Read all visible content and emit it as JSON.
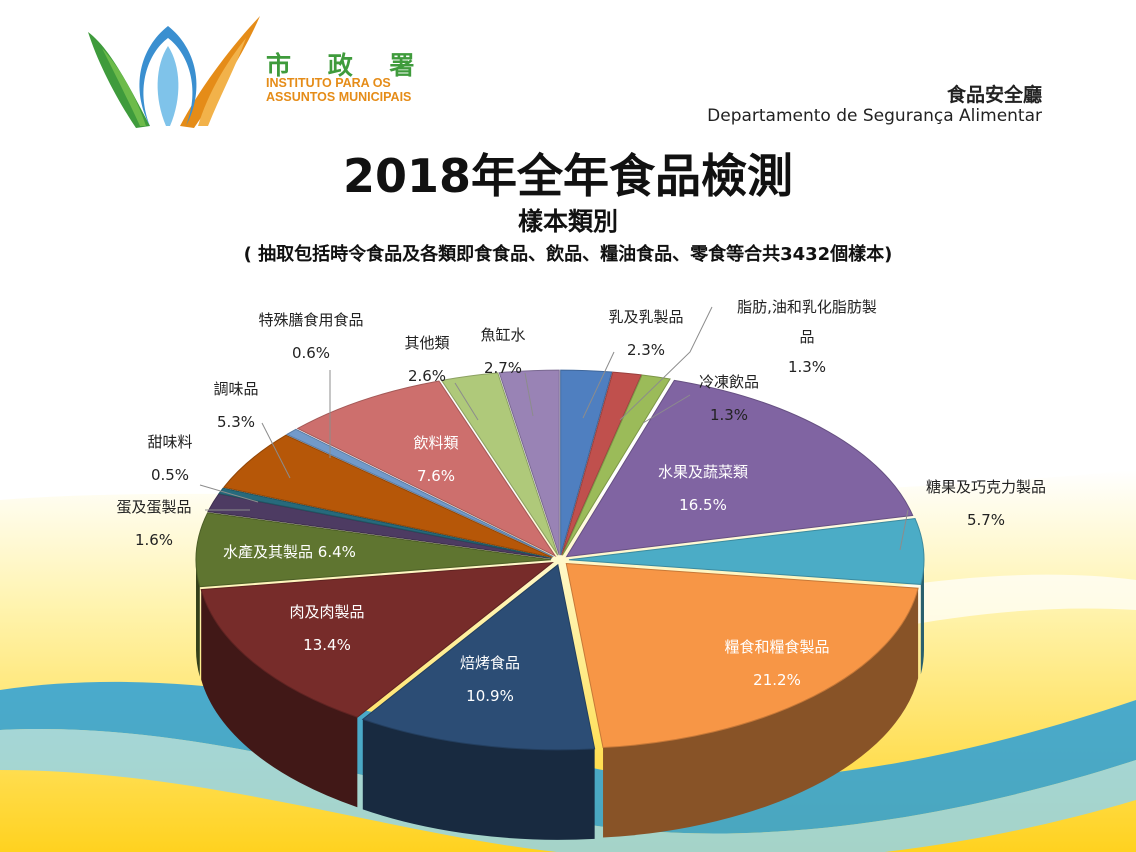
{
  "header": {
    "logo_chinese": "市 政 署",
    "logo_portuguese_line1": "INSTITUTO PARA OS",
    "logo_portuguese_line2": "ASSUNTOS MUNICIPAIS",
    "department_chinese": "食品安全廳",
    "department_portuguese": "Departamento de Segurança Alimentar"
  },
  "colors": {
    "logo_green": "#3f9b3c",
    "logo_orange": "#e58c18",
    "logo_blue": "#3a8fd0",
    "background_yellow": "#ffd62a",
    "background_blue": "#1a9ad8"
  },
  "chart_data": {
    "type": "pie",
    "title": "2018年全年食品檢測",
    "subtitle": "樣本類別",
    "note": "( 抽取包括時令食品及各類即食食品、飲品、糧油食品、零食等合共3432個樣本)",
    "slices": [
      {
        "label": "乳及乳製品",
        "value_text": "2.3%",
        "value": 2.3,
        "color": "#4f7fc0"
      },
      {
        "label": "脂肪,油和乳化脂肪製品",
        "value_text": "1.3%",
        "value": 1.3,
        "color": "#c0504d"
      },
      {
        "label": "冷凍飲品",
        "value_text": "1.3%",
        "value": 1.3,
        "color": "#9bbb59"
      },
      {
        "label": "水果及蔬菜類",
        "value_text": "16.5%",
        "value": 16.5,
        "color": "#8064a2"
      },
      {
        "label": "糖果及巧克力製品",
        "value_text": "5.7%",
        "value": 5.7,
        "color": "#4bacc6"
      },
      {
        "label": "糧食和糧食製品",
        "value_text": "21.2%",
        "value": 21.2,
        "color": "#f79646"
      },
      {
        "label": "焙烤食品",
        "value_text": "10.9%",
        "value": 10.9,
        "color": "#2c4d75"
      },
      {
        "label": "肉及肉製品",
        "value_text": "13.4%",
        "value": 13.4,
        "color": "#772c2a"
      },
      {
        "label": "水產及其製品",
        "value_text": "6.4%",
        "value": 6.4,
        "color": "#5f7530"
      },
      {
        "label": "蛋及蛋製品",
        "value_text": "1.6%",
        "value": 1.6,
        "color": "#4d3b62"
      },
      {
        "label": "甜味料",
        "value_text": "0.5%",
        "value": 0.5,
        "color": "#276a7c"
      },
      {
        "label": "調味品",
        "value_text": "5.3%",
        "value": 5.3,
        "color": "#b65708"
      },
      {
        "label": "特殊膳食用食品",
        "value_text": "0.6%",
        "value": 0.6,
        "color": "#729aca"
      },
      {
        "label": "飲料類",
        "value_text": "7.6%",
        "value": 7.6,
        "color": "#cd6f6d"
      },
      {
        "label": "其他類",
        "value_text": "2.6%",
        "value": 2.6,
        "color": "#afc97a"
      },
      {
        "label": "魚缸水",
        "value_text": "2.7%",
        "value": 2.7,
        "color": "#9983b5"
      }
    ]
  }
}
